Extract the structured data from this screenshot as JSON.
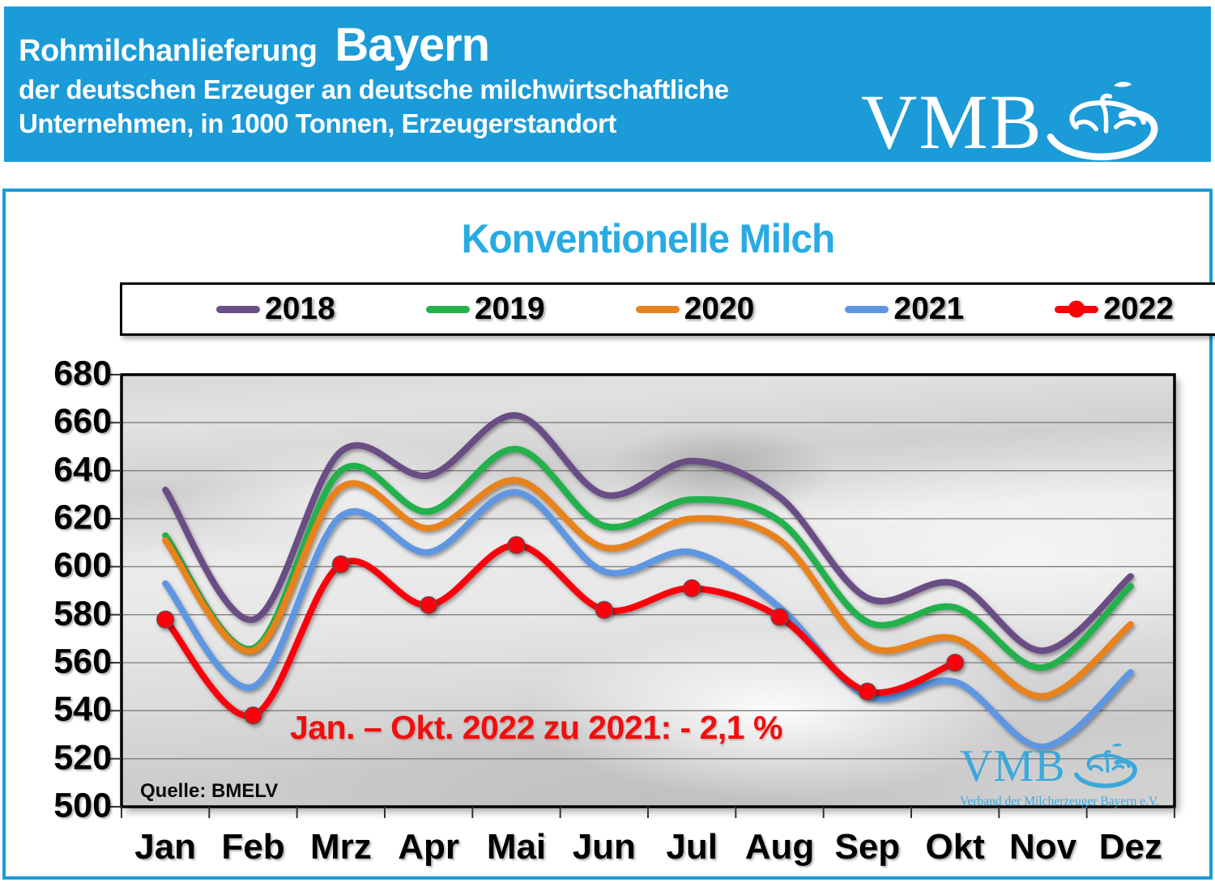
{
  "banner": {
    "title_small": "Rohmilchanlieferung",
    "title_big": "Bayern",
    "subtitle_line1": "der deutschen Erzeuger an deutsche milchwirtschaftliche",
    "subtitle_line2": "Unternehmen, in 1000 Tonnen, Erzeugerstandort",
    "logo_text": "VMB",
    "bg_color": "#1b9bd7"
  },
  "chart_data": {
    "type": "line",
    "title": "Konventionelle Milch",
    "title_color": "#29abe2",
    "categories": [
      "Jan",
      "Feb",
      "Mrz",
      "Apr",
      "Mai",
      "Jun",
      "Jul",
      "Aug",
      "Sep",
      "Okt",
      "Nov",
      "Dez"
    ],
    "series": [
      {
        "name": "2018",
        "color": "#6a4e85",
        "marker": false,
        "values": [
          632,
          578,
          648,
          638,
          663,
          630,
          644,
          629,
          587,
          593,
          565,
          596
        ]
      },
      {
        "name": "2019",
        "color": "#22b14c",
        "marker": false,
        "values": [
          613,
          566,
          640,
          623,
          649,
          617,
          628,
          619,
          577,
          583,
          558,
          592
        ]
      },
      {
        "name": "2020",
        "color": "#e8821f",
        "marker": false,
        "values": [
          611,
          565,
          633,
          616,
          636,
          608,
          620,
          611,
          567,
          570,
          546,
          576
        ]
      },
      {
        "name": "2021",
        "color": "#5f96e2",
        "marker": false,
        "values": [
          593,
          550,
          621,
          606,
          631,
          598,
          606,
          583,
          546,
          552,
          525,
          556
        ]
      },
      {
        "name": "2022",
        "color": "#fb0007",
        "marker": true,
        "values": [
          578,
          538,
          601,
          584,
          609,
          582,
          591,
          579,
          548,
          560,
          null,
          null
        ]
      }
    ],
    "ylim": [
      500,
      680
    ],
    "ytick_step": 20,
    "ytick_labels": [
      "680",
      "660",
      "640",
      "620",
      "600",
      "580",
      "560",
      "540",
      "520",
      "500"
    ],
    "grid": true,
    "legend_position": "top",
    "plot_background": "grayscale milk splash photo"
  },
  "annotation": {
    "text": "Jan. – Okt. 2022 zu 2021: - 2,1 %",
    "color": "#ef0f0f"
  },
  "source": "Quelle: BMELV",
  "watermark": {
    "text": "VMB",
    "subtext": "Verband der Milcherzeuger Bayern e.V."
  }
}
